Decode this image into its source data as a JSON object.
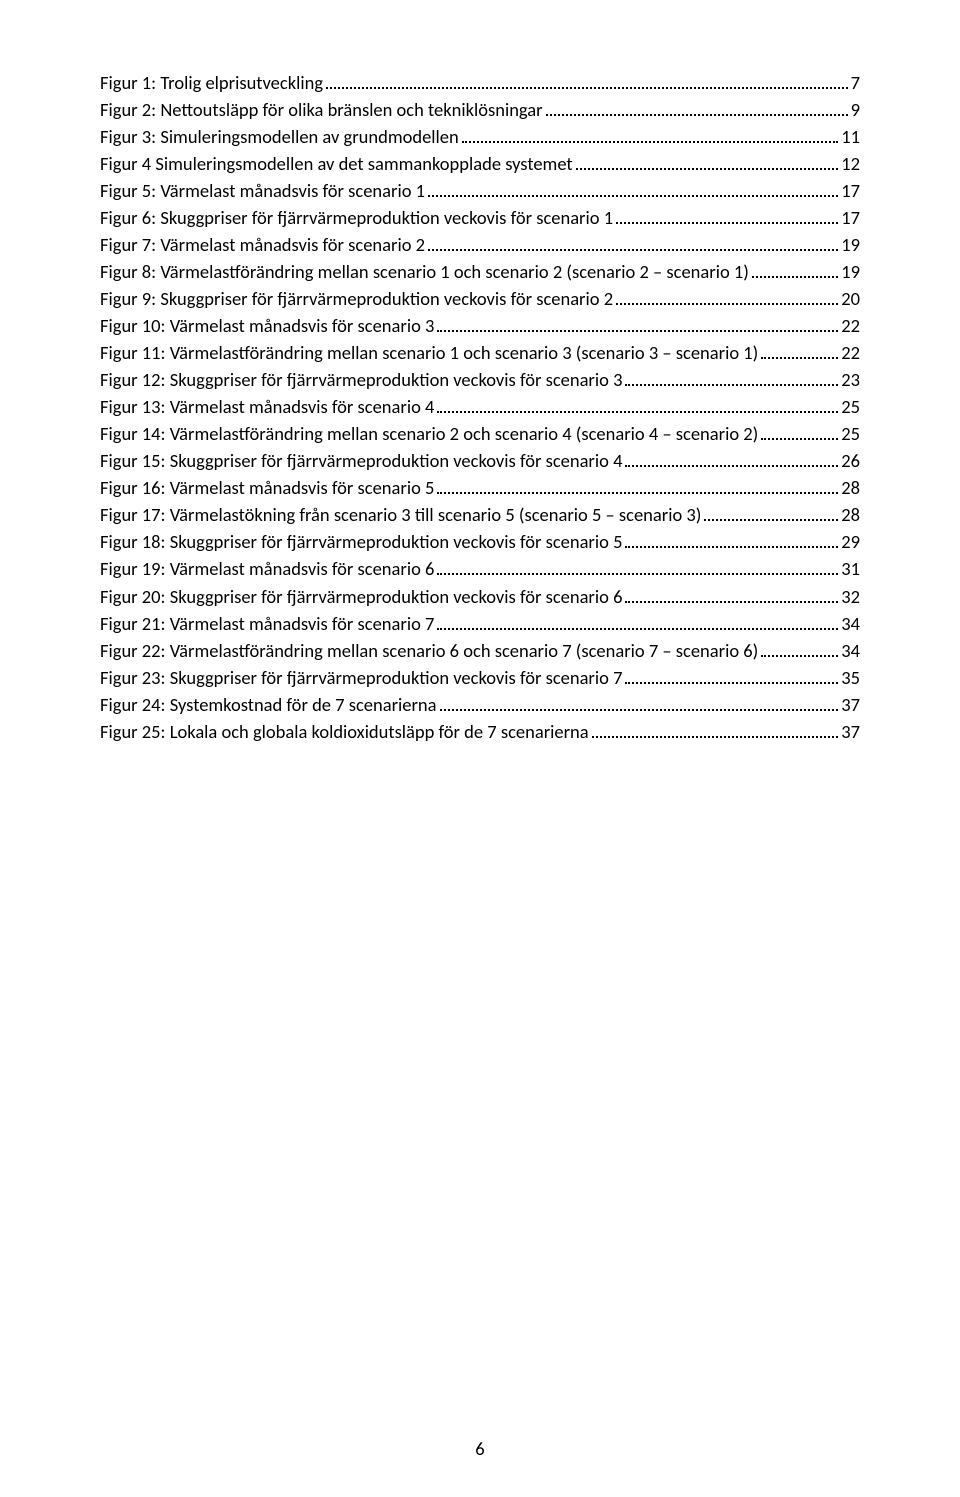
{
  "page_number": "6",
  "entries": [
    {
      "label": "Figur 1: Trolig elprisutveckling",
      "page": "7"
    },
    {
      "label": "Figur 2: Nettoutsläpp för olika bränslen och tekniklösningar",
      "page": "9"
    },
    {
      "label": "Figur 3: Simuleringsmodellen av grundmodellen",
      "page": "11"
    },
    {
      "label": "Figur 4 Simuleringsmodellen av det sammankopplade systemet",
      "page": "12"
    },
    {
      "label": "Figur 5: Värmelast månadsvis för scenario 1",
      "page": "17"
    },
    {
      "label": "Figur 6: Skuggpriser för fjärrvärmeproduktion veckovis för scenario 1",
      "page": "17"
    },
    {
      "label": "Figur 7: Värmelast månadsvis för scenario 2",
      "page": "19"
    },
    {
      "label": "Figur 8: Värmelastförändring mellan scenario 1 och scenario 2 (scenario 2 – scenario 1)",
      "page": "19"
    },
    {
      "label": "Figur 9: Skuggpriser för fjärrvärmeproduktion veckovis för scenario 2",
      "page": "20"
    },
    {
      "label": "Figur 10: Värmelast månadsvis för scenario 3",
      "page": "22"
    },
    {
      "label": "Figur 11: Värmelastförändring mellan scenario 1 och scenario 3 (scenario 3 – scenario 1)",
      "page": "22"
    },
    {
      "label": "Figur 12: Skuggpriser för fjärrvärmeproduktion veckovis för scenario 3",
      "page": "23"
    },
    {
      "label": "Figur 13: Värmelast månadsvis för scenario 4",
      "page": "25"
    },
    {
      "label": "Figur 14: Värmelastförändring mellan scenario 2 och scenario 4 (scenario 4 – scenario 2)",
      "page": "25"
    },
    {
      "label": "Figur 15: Skuggpriser för fjärrvärmeproduktion veckovis för scenario 4",
      "page": "26"
    },
    {
      "label": "Figur 16: Värmelast månadsvis för scenario 5",
      "page": "28"
    },
    {
      "label": "Figur 17: Värmelastökning från scenario 3 till scenario 5 (scenario 5 – scenario 3)",
      "page": "28"
    },
    {
      "label": "Figur 18: Skuggpriser för fjärrvärmeproduktion veckovis för scenario 5",
      "page": "29"
    },
    {
      "label": "Figur 19: Värmelast månadsvis för scenario 6",
      "page": "31"
    },
    {
      "label": "Figur 20: Skuggpriser för fjärrvärmeproduktion veckovis för scenario 6",
      "page": "32"
    },
    {
      "label": "Figur 21: Värmelast månadsvis för scenario 7",
      "page": "34"
    },
    {
      "label": "Figur 22: Värmelastförändring mellan scenario 6 och scenario 7 (scenario 7 – scenario 6)",
      "page": "34"
    },
    {
      "label": "Figur 23: Skuggpriser för fjärrvärmeproduktion veckovis för scenario 7",
      "page": "35"
    },
    {
      "label": "Figur 24: Systemkostnad för de 7 scenarierna",
      "page": "37"
    },
    {
      "label": "Figur 25: Lokala och globala koldioxidutsläpp för de 7 scenarierna",
      "page": "37"
    }
  ]
}
